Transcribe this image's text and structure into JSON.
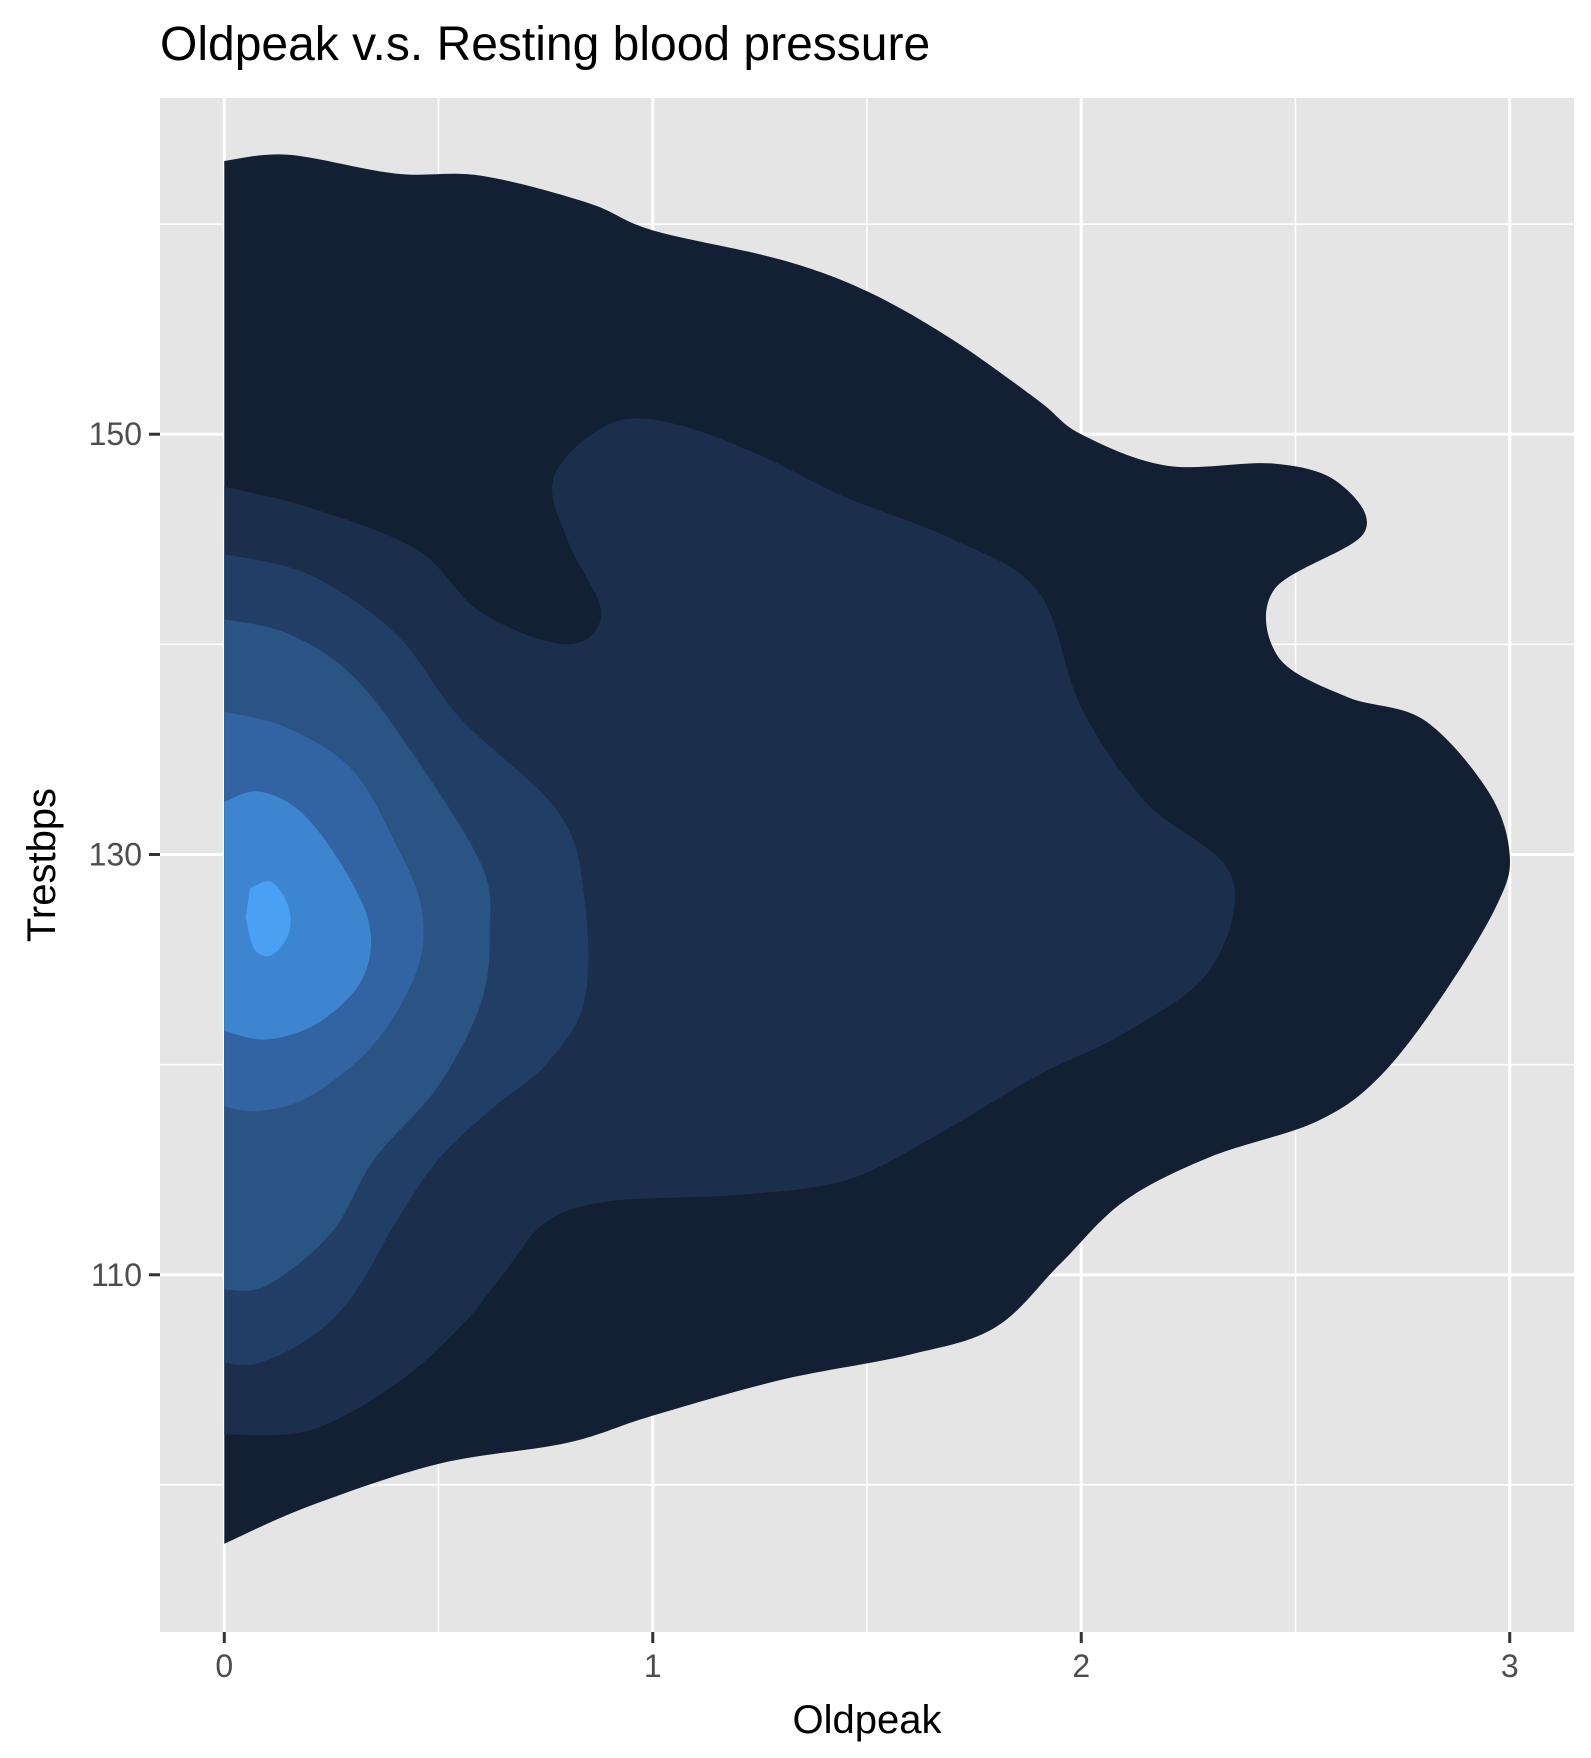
{
  "chart_data": {
    "type": "density_2d_filled",
    "title": "Oldpeak v.s. Resting blood pressure",
    "xlabel": "Oldpeak",
    "ylabel": "Trestbps",
    "xlim": [
      -0.15,
      3.15
    ],
    "ylim": [
      93,
      166
    ],
    "x_ticks": [
      0,
      1,
      2,
      3
    ],
    "x_tick_labels": [
      "0",
      "1",
      "2",
      "3"
    ],
    "y_ticks": [
      110,
      130,
      150
    ],
    "y_tick_labels": [
      "110",
      "130",
      "150"
    ],
    "minor_grid_x": [
      0.5,
      1.5,
      2.5
    ],
    "minor_grid_y": [
      100,
      120,
      140,
      160
    ],
    "grid": true,
    "background_color": "#e5e5e5",
    "grid_color": "#ffffff",
    "levels": [
      {
        "level": 1,
        "fill": "#132033",
        "contour": [
          [
            0.0,
            163
          ],
          [
            0.15,
            163.3
          ],
          [
            0.4,
            162.4
          ],
          [
            0.6,
            162.3
          ],
          [
            0.85,
            161
          ],
          [
            1,
            159.7
          ],
          [
            1.3,
            158.3
          ],
          [
            1.5,
            156.8
          ],
          [
            1.7,
            154.5
          ],
          [
            1.9,
            151.6
          ],
          [
            2,
            150
          ],
          [
            2.2,
            148.5
          ],
          [
            2.45,
            148.6
          ],
          [
            2.6,
            147.7
          ],
          [
            2.66,
            145.3
          ],
          [
            2.45,
            142.6
          ],
          [
            2.46,
            139.4
          ],
          [
            2.62,
            137.5
          ],
          [
            2.8,
            136.4
          ],
          [
            2.95,
            133
          ],
          [
            3,
            130
          ],
          [
            2.97,
            127.6
          ],
          [
            2.85,
            123.5
          ],
          [
            2.7,
            119.5
          ],
          [
            2.55,
            117.3
          ],
          [
            2.3,
            115.6
          ],
          [
            2.1,
            113.5
          ],
          [
            1.95,
            110.5
          ],
          [
            1.8,
            107.5
          ],
          [
            1.6,
            106.2
          ],
          [
            1.3,
            105
          ],
          [
            1.0,
            103.3
          ],
          [
            0.8,
            102
          ],
          [
            0.5,
            101
          ],
          [
            0.2,
            99
          ],
          [
            0.0,
            97.2
          ]
        ]
      },
      {
        "level": 2,
        "fill": "#1b2f4d",
        "contour": [
          [
            0.0,
            147.5
          ],
          [
            0.2,
            146.5
          ],
          [
            0.45,
            144.5
          ],
          [
            0.6,
            141.5
          ],
          [
            0.8,
            140
          ],
          [
            0.88,
            141.5
          ],
          [
            0.8,
            145
          ],
          [
            0.77,
            148
          ],
          [
            0.9,
            150.5
          ],
          [
            1.05,
            150.5
          ],
          [
            1.25,
            149
          ],
          [
            1.45,
            147
          ],
          [
            1.7,
            145
          ],
          [
            1.9,
            142.5
          ],
          [
            2.0,
            137
          ],
          [
            2.15,
            132.5
          ],
          [
            2.35,
            129
          ],
          [
            2.3,
            124.5
          ],
          [
            2.1,
            121.5
          ],
          [
            1.9,
            119.5
          ],
          [
            1.65,
            116.5
          ],
          [
            1.45,
            114.5
          ],
          [
            1.2,
            113.8
          ],
          [
            0.9,
            113.5
          ],
          [
            0.75,
            112.5
          ],
          [
            0.65,
            110
          ],
          [
            0.55,
            107.5
          ],
          [
            0.4,
            104.8
          ],
          [
            0.2,
            102.6
          ],
          [
            0.0,
            102.4
          ]
        ]
      },
      {
        "level": 3,
        "fill": "#213f66",
        "contour": [
          [
            0.0,
            144.3
          ],
          [
            0.2,
            143.3
          ],
          [
            0.4,
            140.5
          ],
          [
            0.55,
            136.5
          ],
          [
            0.78,
            132
          ],
          [
            0.84,
            128
          ],
          [
            0.84,
            123
          ],
          [
            0.75,
            120
          ],
          [
            0.63,
            118
          ],
          [
            0.5,
            115.5
          ],
          [
            0.4,
            112.5
          ],
          [
            0.3,
            109
          ],
          [
            0.2,
            107
          ],
          [
            0.08,
            105.8
          ],
          [
            0.0,
            105.8
          ]
        ]
      },
      {
        "level": 4,
        "fill": "#2a5483",
        "contour": [
          [
            0.0,
            141.2
          ],
          [
            0.15,
            140.5
          ],
          [
            0.3,
            138.5
          ],
          [
            0.45,
            134.5
          ],
          [
            0.6,
            129.5
          ],
          [
            0.62,
            126.5
          ],
          [
            0.6,
            123
          ],
          [
            0.5,
            119
          ],
          [
            0.35,
            115.5
          ],
          [
            0.25,
            112
          ],
          [
            0.1,
            109.5
          ],
          [
            0.0,
            109.3
          ]
        ]
      },
      {
        "level": 5,
        "fill": "#3264a3",
        "contour": [
          [
            0.0,
            136.8
          ],
          [
            0.15,
            136
          ],
          [
            0.3,
            134
          ],
          [
            0.4,
            130.5
          ],
          [
            0.46,
            127.5
          ],
          [
            0.45,
            124.5
          ],
          [
            0.35,
            121
          ],
          [
            0.2,
            118.5
          ],
          [
            0.08,
            117.8
          ],
          [
            0.0,
            118
          ]
        ]
      },
      {
        "level": 6,
        "fill": "#3e85d0",
        "contour": [
          [
            0.0,
            132.5
          ],
          [
            0.08,
            133
          ],
          [
            0.18,
            132
          ],
          [
            0.28,
            129.3
          ],
          [
            0.34,
            126.5
          ],
          [
            0.32,
            124
          ],
          [
            0.22,
            122
          ],
          [
            0.1,
            121.2
          ],
          [
            0.0,
            121.6
          ]
        ]
      },
      {
        "level": 7,
        "fill": "#4aa0f2",
        "contour": [
          [
            0.06,
            128.4
          ],
          [
            0.11,
            128.7
          ],
          [
            0.15,
            127.5
          ],
          [
            0.15,
            126.2
          ],
          [
            0.11,
            125.2
          ],
          [
            0.07,
            125.5
          ],
          [
            0.05,
            127
          ]
        ]
      }
    ]
  }
}
